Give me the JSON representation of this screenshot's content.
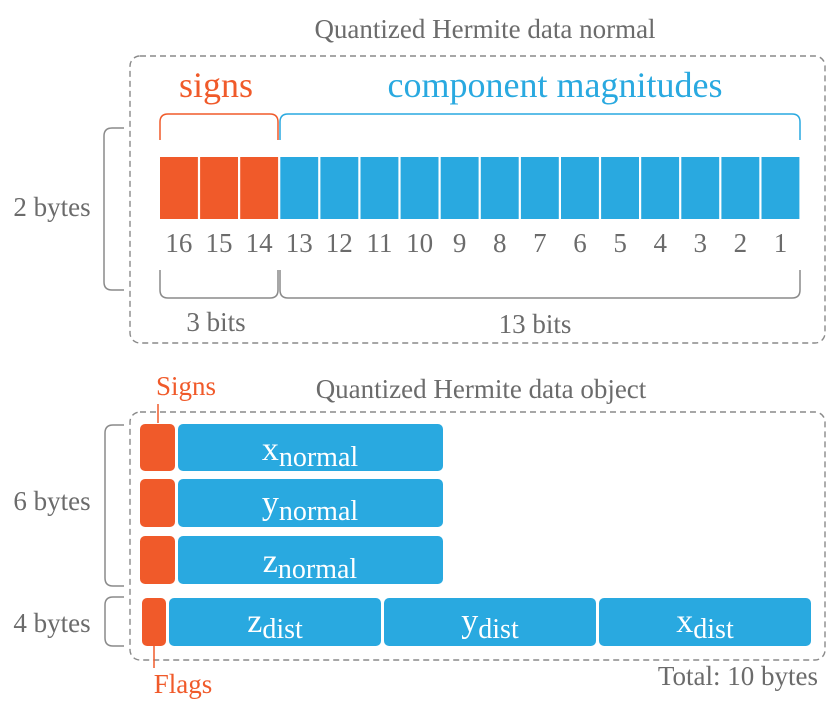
{
  "colors": {
    "orange": "#f05a2a",
    "blue": "#29a9e0",
    "grey_text": "#6b6b6b",
    "grey_line": "#8a8a8a"
  },
  "normal": {
    "title": "Quantized Hermite data normal",
    "signs_label": "signs",
    "magnitudes_label": "component magnitudes",
    "size_label": "2 bytes",
    "bit_numbers": [
      "16",
      "15",
      "14",
      "13",
      "12",
      "11",
      "10",
      "9",
      "8",
      "7",
      "6",
      "5",
      "4",
      "3",
      "2",
      "1"
    ],
    "sign_bit_count": 3,
    "sign_bits_label": "3 bits",
    "magnitude_bits_label": "13 bits"
  },
  "object": {
    "title": "Quantized Hermite data object",
    "signs_label": "Signs",
    "flags_label": "Flags",
    "normal_size_label": "6 bytes",
    "dist_size_label": "4 bytes",
    "total_label": "Total: 10 bytes",
    "normal_components": [
      {
        "base": "x",
        "sub": "normal"
      },
      {
        "base": "y",
        "sub": "normal"
      },
      {
        "base": "z",
        "sub": "normal"
      }
    ],
    "dist_components": [
      {
        "base": "z",
        "sub": "dist"
      },
      {
        "base": "y",
        "sub": "dist"
      },
      {
        "base": "x",
        "sub": "dist"
      }
    ]
  }
}
